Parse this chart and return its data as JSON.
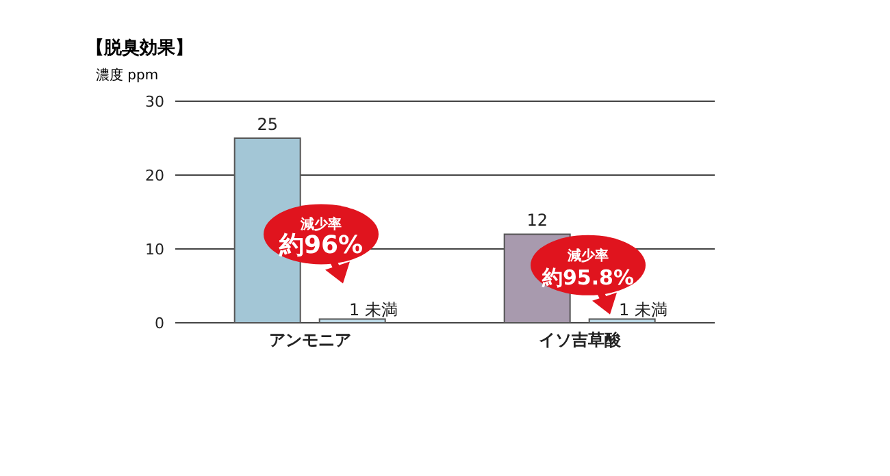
{
  "chart_data": {
    "type": "bar",
    "title": "【脱臭効果】",
    "ylabel": "濃度 ppm",
    "categories": [
      "アンモニア",
      "イソ吉草酸"
    ],
    "series": [
      {
        "colors": [
          "#a3c6d6",
          "#a89aae"
        ],
        "values": [
          25,
          12
        ],
        "value_labels": [
          "25",
          "12"
        ]
      },
      {
        "color": "#bcd9e6",
        "values": [
          0.5,
          0.5
        ],
        "value_labels": [
          "1 未満",
          "1 未満"
        ]
      }
    ],
    "ylim": [
      0,
      30
    ],
    "yticks": [
      0,
      10,
      20,
      30
    ],
    "grid": "y",
    "legend": false,
    "annotations": [
      "減少率約96%",
      "減少率約95.8%"
    ]
  }
}
